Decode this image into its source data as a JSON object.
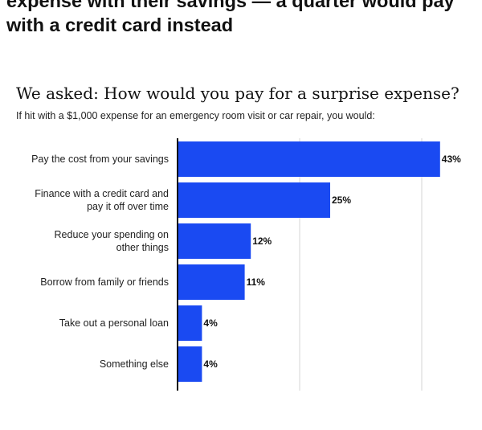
{
  "headline": {
    "line1": "expense with their savings — a quarter would pay",
    "line2": "with a credit card instead"
  },
  "colors": {
    "bar": "#1a4af2",
    "grid": "#d6d6d6",
    "axis": "#111111"
  },
  "chart_data": {
    "type": "bar",
    "orientation": "horizontal",
    "title": "We asked: How would you pay for a surprise expense?",
    "subtitle": "If hit with a $1,000 expense for an emergency room visit or car repair, you would:",
    "categories": [
      [
        "Pay the cost from your savings"
      ],
      [
        "Finance with a credit card and",
        "pay it off over time"
      ],
      [
        "Reduce your spending on",
        "other things"
      ],
      [
        "Borrow from family or friends"
      ],
      [
        "Take out a personal loan"
      ],
      [
        "Something else"
      ]
    ],
    "values": [
      43,
      25,
      12,
      11,
      4,
      4
    ],
    "value_labels": [
      "43%",
      "25%",
      "12%",
      "11%",
      "4%",
      "4%"
    ],
    "xlim": [
      0,
      50
    ],
    "grid": true
  }
}
